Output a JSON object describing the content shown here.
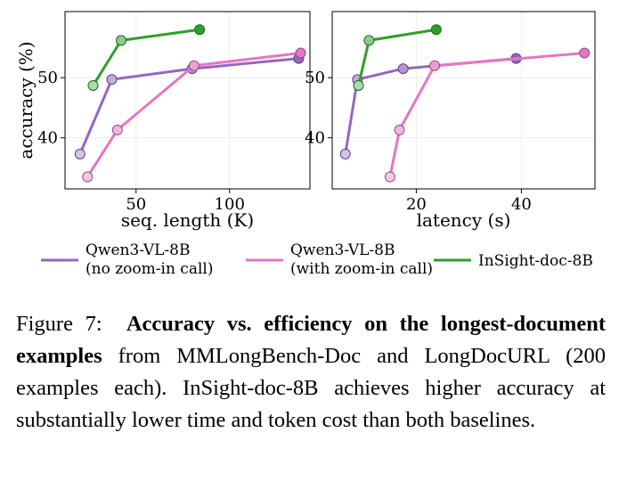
{
  "figure": {
    "colors": {
      "qwen_no_zoom": "#9467bd",
      "qwen_zoom": "#e377c2",
      "insight": "#2ca02c"
    },
    "legend": [
      {
        "series": "qwen_no_zoom",
        "line1": "Qwen3-VL-8B",
        "line2": "(no zoom-in call)"
      },
      {
        "series": "qwen_zoom",
        "line1": "Qwen3-VL-8B",
        "line2": "(with zoom-in call)"
      },
      {
        "series": "insight",
        "line1": "InSight-doc-8B",
        "line2": ""
      }
    ]
  },
  "chart_data": [
    {
      "type": "line",
      "xlabel": "seq. length (K)",
      "ylabel": "accuracy (%)",
      "xlim": [
        12,
        143
      ],
      "ylim": [
        31.5,
        61
      ],
      "xticks": [
        50,
        100
      ],
      "yticks": [
        40,
        50
      ],
      "grid": true,
      "series": [
        {
          "key": "qwen_no_zoom",
          "points": [
            [
              20,
              37.3
            ],
            [
              37,
              49.7
            ],
            [
              80,
              51.5
            ],
            [
              137,
              53.2
            ]
          ]
        },
        {
          "key": "qwen_zoom",
          "points": [
            [
              24,
              33.5
            ],
            [
              40,
              41.3
            ],
            [
              81,
              52.0
            ],
            [
              138,
              54.1
            ]
          ]
        },
        {
          "key": "insight",
          "points": [
            [
              27,
              48.7
            ],
            [
              42,
              56.2
            ],
            [
              84,
              58.0
            ]
          ]
        }
      ]
    },
    {
      "type": "line",
      "xlabel": "latency (s)",
      "ylabel": "",
      "xlim": [
        4,
        54
      ],
      "ylim": [
        31.5,
        61
      ],
      "xticks": [
        20,
        40
      ],
      "yticks": [
        40,
        50
      ],
      "grid": true,
      "series": [
        {
          "key": "qwen_no_zoom",
          "points": [
            [
              6.5,
              37.3
            ],
            [
              8.8,
              49.7
            ],
            [
              17.5,
              51.5
            ],
            [
              39.0,
              53.2
            ]
          ]
        },
        {
          "key": "qwen_zoom",
          "points": [
            [
              15.0,
              33.5
            ],
            [
              16.8,
              41.3
            ],
            [
              23.5,
              52.0
            ],
            [
              52.0,
              54.1
            ]
          ]
        },
        {
          "key": "insight",
          "points": [
            [
              9.0,
              48.7
            ],
            [
              11.0,
              56.2
            ],
            [
              23.8,
              58.0
            ]
          ]
        }
      ]
    }
  ],
  "caption": {
    "label": "Figure 7:",
    "bold": "Accuracy vs. efficiency on the longest-document examples",
    "rest": " from MMLongBench-Doc and LongDocURL (200 examples each). InSight-doc-8B achieves higher accuracy at substantially lower time and token cost than both baselines."
  }
}
